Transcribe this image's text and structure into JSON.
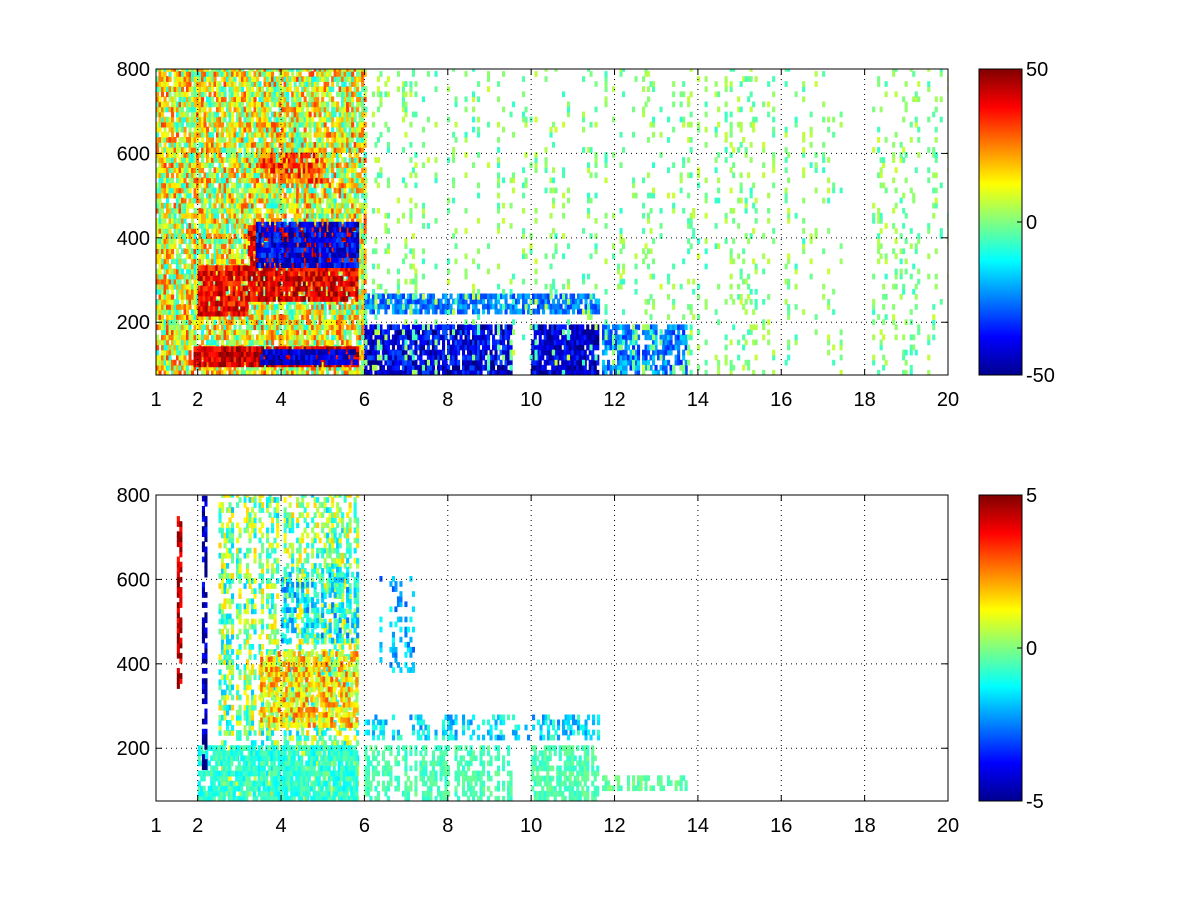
{
  "figure": {
    "background": "#ffffff"
  },
  "chart_data": [
    {
      "type": "heatmap",
      "title": "",
      "xlabel": "",
      "ylabel": "",
      "xlim": [
        1,
        20
      ],
      "ylim": [
        75,
        800
      ],
      "xticks": [
        1,
        2,
        4,
        6,
        8,
        10,
        12,
        14,
        16,
        18,
        20
      ],
      "xtick_labels": [
        "1",
        "2",
        "4",
        "6",
        "8",
        "10",
        "12",
        "14",
        "16",
        "18",
        "20"
      ],
      "yticks": [
        200,
        400,
        600,
        800
      ],
      "ytick_labels": [
        "200",
        "400",
        "600",
        "800"
      ],
      "grid": true,
      "colormap": "jet",
      "clim": [
        -50,
        50
      ],
      "colorbar": {
        "ticks": [
          50,
          0,
          -50
        ],
        "tick_labels": [
          "50",
          "0",
          "-50"
        ],
        "placement": "right"
      },
      "features": [
        {
          "x": [
            1,
            6
          ],
          "y": [
            75,
            800
          ],
          "value": 10,
          "spread": 22,
          "density": 0.85
        },
        {
          "x": [
            2,
            3.2
          ],
          "y": [
            215,
            330
          ],
          "value": 38,
          "spread": 10,
          "density": 0.9
        },
        {
          "x": [
            3.2,
            5.8
          ],
          "y": [
            250,
            420
          ],
          "value": 40,
          "spread": 10,
          "density": 0.9
        },
        {
          "x": [
            3.4,
            5.8
          ],
          "y": [
            330,
            430
          ],
          "value": -38,
          "spread": 10,
          "density": 0.8
        },
        {
          "x": [
            3.5,
            5
          ],
          "y": [
            530,
            600
          ],
          "value": 30,
          "spread": 12,
          "density": 0.75
        },
        {
          "x": [
            1.9,
            5.8
          ],
          "y": [
            95,
            140
          ],
          "value": 42,
          "spread": 10,
          "density": 0.95
        },
        {
          "x": [
            3.5,
            5.8
          ],
          "y": [
            100,
            130
          ],
          "value": -42,
          "spread": 8,
          "density": 0.85
        },
        {
          "x": [
            6,
            9.5
          ],
          "y": [
            75,
            190
          ],
          "value": -40,
          "spread": 12,
          "density": 0.85
        },
        {
          "x": [
            10,
            11.6
          ],
          "y": [
            75,
            190
          ],
          "value": -42,
          "spread": 10,
          "density": 0.9
        },
        {
          "x": [
            6,
            11.6
          ],
          "y": [
            220,
            260
          ],
          "value": -25,
          "spread": 8,
          "density": 0.75
        },
        {
          "x": [
            11.7,
            13.7
          ],
          "y": [
            75,
            185
          ],
          "value": -25,
          "spread": 10,
          "density": 0.7
        },
        {
          "x": [
            6,
            20
          ],
          "y": [
            75,
            800
          ],
          "value": 0,
          "spread": 8,
          "density": 0.2
        }
      ]
    },
    {
      "type": "heatmap",
      "title": "",
      "xlabel": "",
      "ylabel": "",
      "xlim": [
        1,
        20
      ],
      "ylim": [
        75,
        800
      ],
      "xticks": [
        1,
        2,
        4,
        6,
        8,
        10,
        12,
        14,
        16,
        18,
        20
      ],
      "xtick_labels": [
        "1",
        "2",
        "4",
        "6",
        "8",
        "10",
        "12",
        "14",
        "16",
        "18",
        "20"
      ],
      "yticks": [
        200,
        400,
        600,
        800
      ],
      "ytick_labels": [
        "200",
        "400",
        "600",
        "800"
      ],
      "grid": true,
      "colormap": "jet",
      "clim": [
        -5,
        5
      ],
      "colorbar": {
        "ticks": [
          5,
          0,
          -5
        ],
        "tick_labels": [
          "5",
          "0",
          "-5"
        ],
        "placement": "right"
      },
      "features": [
        {
          "x": [
            2.5,
            5.8
          ],
          "y": [
            75,
            800
          ],
          "value": 0,
          "spread": 1.8,
          "density": 0.55
        },
        {
          "x": [
            3.5,
            5.8
          ],
          "y": [
            250,
            420
          ],
          "value": 1.5,
          "spread": 1.5,
          "density": 0.7
        },
        {
          "x": [
            4,
            5.8
          ],
          "y": [
            450,
            620
          ],
          "value": -1.5,
          "spread": 1.2,
          "density": 0.5
        },
        {
          "x": [
            2,
            5.8
          ],
          "y": [
            75,
            200
          ],
          "value": -0.8,
          "spread": 0.6,
          "density": 0.8
        },
        {
          "x": [
            6,
            9.5
          ],
          "y": [
            75,
            200
          ],
          "value": -0.5,
          "spread": 0.4,
          "density": 0.6
        },
        {
          "x": [
            10,
            11.6
          ],
          "y": [
            75,
            200
          ],
          "value": -0.5,
          "spread": 0.4,
          "density": 0.7
        },
        {
          "x": [
            11.7,
            13.7
          ],
          "y": [
            100,
            130
          ],
          "value": -0.3,
          "spread": 0.4,
          "density": 0.6
        },
        {
          "x": [
            6,
            11.6
          ],
          "y": [
            220,
            270
          ],
          "value": -1.5,
          "spread": 1,
          "density": 0.5
        },
        {
          "x": [
            1.5,
            1.6
          ],
          "y": [
            330,
            740
          ],
          "value": 4.5,
          "spread": 1,
          "density": 0.7
        },
        {
          "x": [
            2.1,
            2.2
          ],
          "y": [
            150,
            790
          ],
          "value": -4.5,
          "spread": 1,
          "density": 0.7
        },
        {
          "x": [
            6.3,
            7.3
          ],
          "y": [
            380,
            600
          ],
          "value": -2,
          "spread": 1,
          "density": 0.35
        }
      ]
    }
  ]
}
